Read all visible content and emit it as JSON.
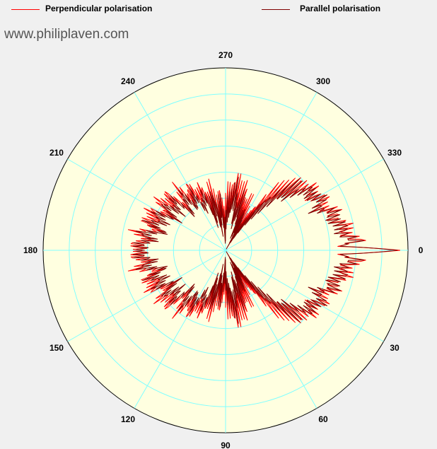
{
  "legend": {
    "perpendicular_label": "Perpendicular polarisation",
    "parallel_label": "Parallel polarisation"
  },
  "watermark": "www.philiplaven.com",
  "chart_data": {
    "type": "polar",
    "angle_labels": [
      "0",
      "30",
      "60",
      "90",
      "120",
      "150",
      "180",
      "210",
      "240",
      "270",
      "300",
      "330"
    ],
    "angle_direction": "clockwise, 0 at right",
    "radial_rings": 7,
    "radial_range": [
      0,
      7
    ],
    "colors": {
      "background": "#ffffe0",
      "grid": "#80ffff",
      "perpendicular": "#ff0000",
      "parallel": "#800000"
    },
    "series": [
      {
        "name": "Perpendicular polarisation",
        "points": [
          [
            0,
            6.7
          ],
          [
            2,
            4.3
          ],
          [
            4,
            5.2
          ],
          [
            8,
            4.6
          ],
          [
            12,
            4.7
          ],
          [
            16,
            4.3
          ],
          [
            20,
            4.5
          ],
          [
            24,
            3.9
          ],
          [
            28,
            4.3
          ],
          [
            32,
            3.9
          ],
          [
            36,
            4.1
          ],
          [
            40,
            3.6
          ],
          [
            44,
            3.6
          ],
          [
            48,
            3.0
          ],
          [
            52,
            2.7
          ],
          [
            56,
            1.6
          ],
          [
            60,
            1.0
          ],
          [
            64,
            1.9
          ],
          [
            68,
            1.6
          ],
          [
            72,
            2.3
          ],
          [
            76,
            2.0
          ],
          [
            80,
            2.6
          ],
          [
            84,
            2.1
          ],
          [
            88,
            2.0
          ],
          [
            92,
            1.1
          ],
          [
            96,
            2.0
          ],
          [
            100,
            1.5
          ],
          [
            104,
            2.3
          ],
          [
            108,
            1.8
          ],
          [
            112,
            2.6
          ],
          [
            116,
            2.2
          ],
          [
            120,
            2.8
          ],
          [
            124,
            2.4
          ],
          [
            128,
            3.0
          ],
          [
            132,
            2.2
          ],
          [
            136,
            3.1
          ],
          [
            140,
            2.7
          ],
          [
            144,
            3.2
          ],
          [
            148,
            2.5
          ],
          [
            152,
            3.3
          ],
          [
            156,
            2.9
          ],
          [
            160,
            3.3
          ],
          [
            164,
            2.7
          ],
          [
            168,
            3.5
          ],
          [
            172,
            3.0
          ],
          [
            176,
            3.5
          ],
          [
            180,
            3.2
          ]
        ]
      },
      {
        "name": "Parallel polarisation",
        "points": [
          [
            0,
            6.6
          ],
          [
            2,
            4.4
          ],
          [
            4,
            5.0
          ],
          [
            8,
            4.5
          ],
          [
            12,
            4.6
          ],
          [
            16,
            4.2
          ],
          [
            20,
            4.4
          ],
          [
            24,
            3.8
          ],
          [
            28,
            4.2
          ],
          [
            32,
            3.8
          ],
          [
            36,
            4.0
          ],
          [
            40,
            3.4
          ],
          [
            44,
            3.3
          ],
          [
            48,
            2.6
          ],
          [
            52,
            2.0
          ],
          [
            56,
            1.0
          ],
          [
            60,
            0.5
          ],
          [
            64,
            1.4
          ],
          [
            68,
            1.0
          ],
          [
            72,
            1.9
          ],
          [
            76,
            1.4
          ],
          [
            80,
            2.3
          ],
          [
            84,
            1.7
          ],
          [
            88,
            1.6
          ],
          [
            92,
            0.7
          ],
          [
            96,
            1.7
          ],
          [
            100,
            1.1
          ],
          [
            104,
            2.0
          ],
          [
            108,
            1.4
          ],
          [
            112,
            2.3
          ],
          [
            116,
            1.8
          ],
          [
            120,
            2.5
          ],
          [
            124,
            2.0
          ],
          [
            128,
            2.7
          ],
          [
            132,
            1.9
          ],
          [
            136,
            2.8
          ],
          [
            140,
            2.3
          ],
          [
            144,
            2.9
          ],
          [
            148,
            2.2
          ],
          [
            152,
            3.0
          ],
          [
            156,
            2.6
          ],
          [
            160,
            3.1
          ],
          [
            164,
            2.4
          ],
          [
            168,
            3.3
          ],
          [
            172,
            2.8
          ],
          [
            176,
            3.3
          ],
          [
            180,
            3.1
          ]
        ]
      }
    ]
  }
}
